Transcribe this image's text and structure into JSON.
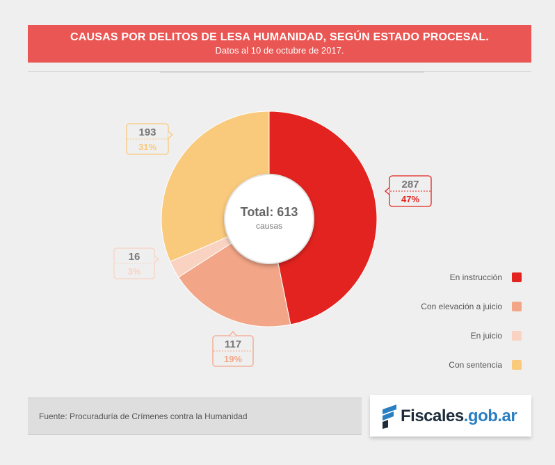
{
  "header": {
    "title": "CAUSAS POR DELITOS DE LESA HUMANIDAD, SEGÚN ESTADO PROCESAL.",
    "subtitle": "Datos al 10 de octubre de 2017."
  },
  "chart_data": {
    "type": "pie",
    "title": "CAUSAS POR DELITOS DE LESA HUMANIDAD, SEGÚN ESTADO PROCESAL.",
    "subtitle": "Datos al 10 de octubre de 2017.",
    "center_label": {
      "total": "Total: 613",
      "unit": "causas"
    },
    "categories": [
      "En instrucción",
      "Con elevación a juicio",
      "En juicio",
      "Con sentencia"
    ],
    "values": [
      287,
      117,
      16,
      193
    ],
    "percent_labels": [
      "47%",
      "19%",
      "3%",
      "31%"
    ],
    "value_labels": [
      "287",
      "117",
      "16",
      "193"
    ],
    "colors": [
      "#e2231f",
      "#f2a587",
      "#f9d2c2",
      "#f9c97c"
    ],
    "legend_position": "right"
  },
  "legend": {
    "items": [
      {
        "label": "En instrucción",
        "color": "#e2231f"
      },
      {
        "label": "Con elevación a juicio",
        "color": "#f2a587"
      },
      {
        "label": "En juicio",
        "color": "#f9d2c2"
      },
      {
        "label": "Con sentencia",
        "color": "#f9c97c"
      }
    ]
  },
  "footer": {
    "source": "Fuente: Procuraduría de Crímenes contra la Humanidad",
    "logo_main": "Fiscales",
    "logo_domain": ".gob.ar"
  }
}
